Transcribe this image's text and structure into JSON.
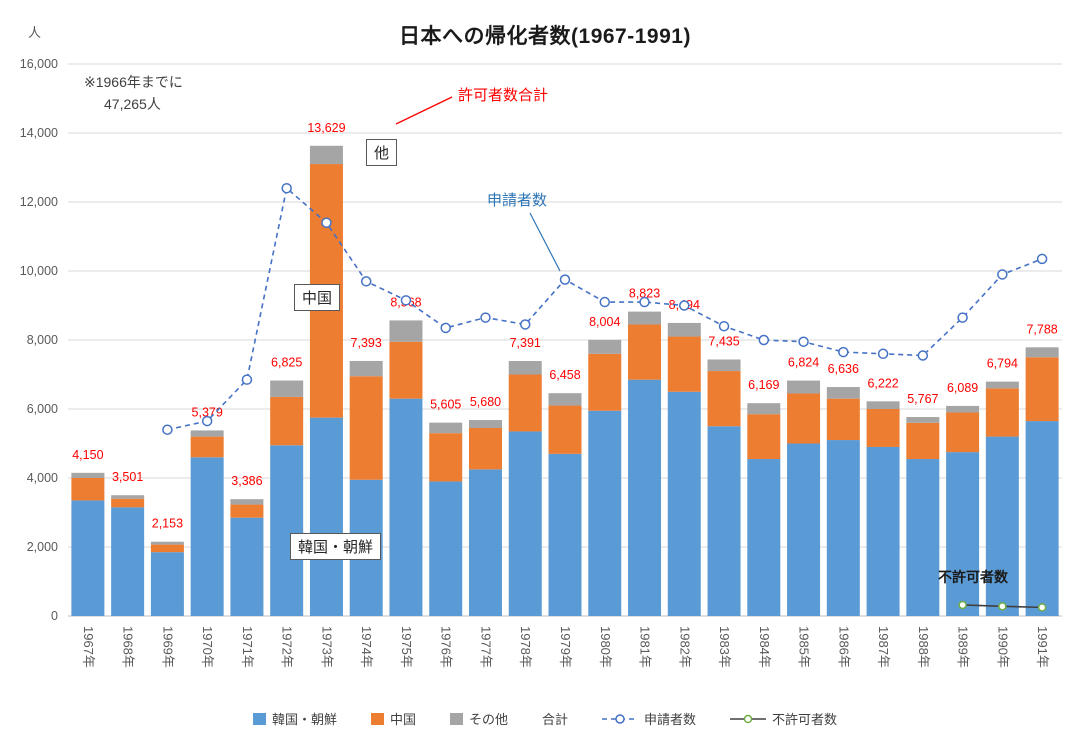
{
  "title": "日本への帰化者数(1967-1991)",
  "y_axis_unit": "人",
  "note": {
    "line1": "※1966年までに",
    "line2": "47,265人"
  },
  "annotations": {
    "approved_total": "許可者数合計",
    "other_box": "他",
    "china_box": "中国",
    "korea_box": "韓国・朝鮮",
    "applicants": "申請者数",
    "rejected": "不許可者数"
  },
  "legend": {
    "items": [
      {
        "key": "korea",
        "label": "韓国・朝鮮",
        "marker": "square",
        "color": "#5B9BD5"
      },
      {
        "key": "china",
        "label": "中国",
        "marker": "square",
        "color": "#ED7D31"
      },
      {
        "key": "other",
        "label": "その他",
        "marker": "square",
        "color": "#A5A5A5"
      },
      {
        "key": "total",
        "label": "合計",
        "marker": "none",
        "color": "#FF0000"
      },
      {
        "key": "applicants",
        "label": "申請者数",
        "marker": "dash-circle",
        "color": "#4472C4"
      },
      {
        "key": "rejected",
        "label": "不許可者数",
        "marker": "line-circle",
        "color": "#404040",
        "marker_color": "#70AD47"
      }
    ]
  },
  "chart_data": {
    "type": "bar",
    "stacked": true,
    "title": "日本への帰化者数(1967-1991)",
    "ylabel": "人",
    "ylim": [
      0,
      16000
    ],
    "ytick_interval": 2000,
    "grid": true,
    "legend_position": "bottom",
    "categories": [
      "1967年",
      "1968年",
      "1969年",
      "1970年",
      "1971年",
      "1972年",
      "1973年",
      "1974年",
      "1975年",
      "1976年",
      "1977年",
      "1978年",
      "1979年",
      "1980年",
      "1981年",
      "1982年",
      "1983年",
      "1984年",
      "1985年",
      "1986年",
      "1987年",
      "1988年",
      "1989年",
      "1990年",
      "1991年"
    ],
    "series": [
      {
        "key": "korea",
        "name": "韓国・朝鮮",
        "type": "bar",
        "color": "#5B9BD5",
        "values": [
          3350,
          3150,
          1850,
          4600,
          2850,
          4950,
          5750,
          3950,
          6300,
          3900,
          4250,
          5350,
          4700,
          5950,
          6850,
          6500,
          5500,
          4550,
          5000,
          5100,
          4900,
          4550,
          4750,
          5200,
          5650
        ]
      },
      {
        "key": "china",
        "name": "中国",
        "type": "bar",
        "color": "#ED7D31",
        "values": [
          650,
          250,
          220,
          600,
          380,
          1400,
          7350,
          3000,
          1650,
          1400,
          1200,
          1650,
          1400,
          1650,
          1600,
          1600,
          1600,
          1300,
          1450,
          1200,
          1100,
          1050,
          1150,
          1400,
          1850
        ]
      },
      {
        "key": "other",
        "name": "その他",
        "type": "bar",
        "color": "#A5A5A5",
        "values": [
          150,
          101,
          83,
          179,
          156,
          475,
          529,
          443,
          618,
          305,
          230,
          391,
          358,
          404,
          373,
          394,
          335,
          319,
          374,
          336,
          222,
          167,
          189,
          194,
          288
        ]
      },
      {
        "key": "total",
        "name": "合計",
        "type": "data-labels",
        "color": "#FF0000",
        "values": [
          4150,
          3501,
          2153,
          5379,
          3386,
          6825,
          13629,
          7393,
          8568,
          5605,
          5680,
          7391,
          6458,
          8004,
          8823,
          8494,
          7435,
          6169,
          6824,
          6636,
          6222,
          5767,
          6089,
          6794,
          7788
        ]
      },
      {
        "key": "applicants",
        "name": "申請者数",
        "type": "line",
        "style": "dashed",
        "color": "#4472C4",
        "values": [
          null,
          null,
          5400,
          5650,
          6850,
          12400,
          11400,
          9700,
          9150,
          8350,
          8650,
          8450,
          9750,
          9100,
          9100,
          9000,
          8400,
          8000,
          7950,
          7650,
          7600,
          7550,
          8650,
          9900,
          10350
        ]
      },
      {
        "key": "rejected",
        "name": "不許可者数",
        "type": "line",
        "style": "solid",
        "color": "#404040",
        "marker_color": "#70AD47",
        "values": [
          null,
          null,
          null,
          null,
          null,
          null,
          null,
          null,
          null,
          null,
          null,
          null,
          null,
          null,
          null,
          null,
          null,
          null,
          null,
          null,
          null,
          null,
          320,
          280,
          250
        ]
      }
    ]
  }
}
